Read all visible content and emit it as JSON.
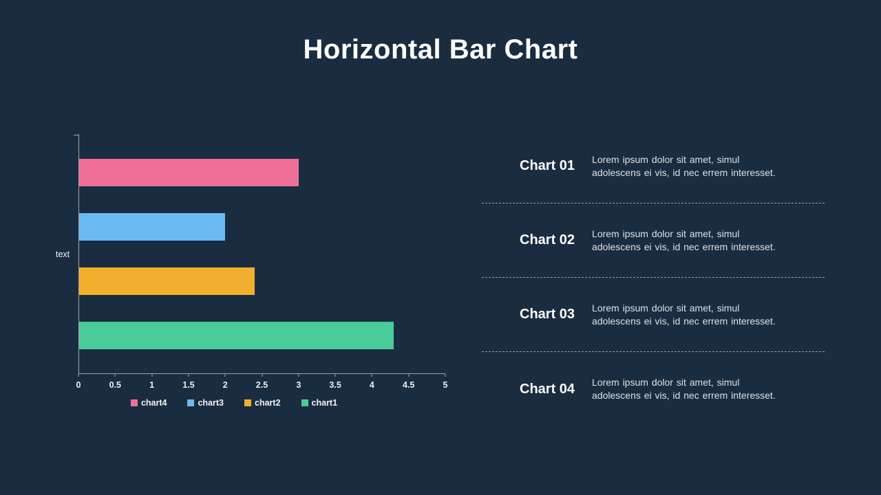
{
  "slide": {
    "title": "Horizontal Bar Chart",
    "background": "#1A2C40"
  },
  "chart_data": {
    "type": "bar",
    "orientation": "horizontal",
    "title": "",
    "xlabel": "",
    "ylabel": "text",
    "xlim": [
      0,
      5
    ],
    "x_ticks": [
      "0",
      "0.5",
      "1",
      "1.5",
      "2",
      "2.5",
      "3",
      "3.5",
      "4",
      "4.5",
      "5"
    ],
    "grid": false,
    "legend_position": "bottom",
    "axis_color": "#A6A6A6",
    "series": [
      {
        "name": "chart4",
        "value": 3.0,
        "color": "#EF6F98"
      },
      {
        "name": "chart3",
        "value": 2.0,
        "color": "#6BB9F2"
      },
      {
        "name": "chart2",
        "value": 2.4,
        "color": "#F0AF2D"
      },
      {
        "name": "chart1",
        "value": 4.3,
        "color": "#49CB9A"
      }
    ],
    "legend": [
      {
        "label": "chart4",
        "color": "#EF6F98"
      },
      {
        "label": "chart3",
        "color": "#6BB9F2"
      },
      {
        "label": "chart2",
        "color": "#F0AF2D"
      },
      {
        "label": "chart1",
        "color": "#49CB9A"
      }
    ]
  },
  "panel": {
    "items": [
      {
        "title": "Chart 01",
        "body": "Lorem ipsum dolor sit amet, simul adolescens ei vis, id nec errem interesset."
      },
      {
        "title": "Chart 02",
        "body": "Lorem ipsum dolor sit amet, simul adolescens ei vis, id nec errem interesset."
      },
      {
        "title": "Chart 03",
        "body": "Lorem ipsum dolor sit amet, simul adolescens ei vis, id nec errem interesset."
      },
      {
        "title": "Chart 04",
        "body": "Lorem ipsum dolor sit amet, simul adolescens ei vis, id nec errem interesset."
      }
    ]
  }
}
